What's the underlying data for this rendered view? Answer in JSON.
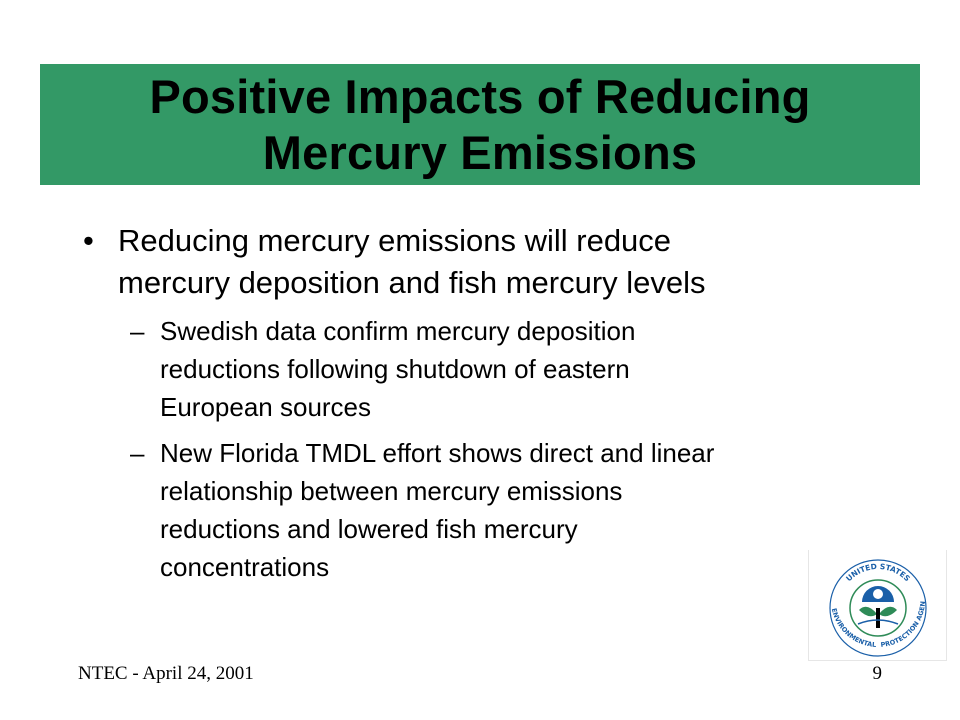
{
  "title": {
    "line1": "Positive Impacts of Reducing",
    "line2": "Mercury Emissions"
  },
  "bullet": {
    "marker": "•",
    "lines": [
      "Reducing mercury emissions will reduce",
      "mercury deposition and fish mercury levels"
    ]
  },
  "sub_bullets": [
    {
      "marker": "–",
      "lines": [
        "Swedish data confirm mercury deposition",
        "reductions following shutdown of eastern",
        "European sources"
      ]
    },
    {
      "marker": "–",
      "lines": [
        "New Florida TMDL effort shows direct and linear",
        "relationship between mercury emissions",
        "reductions and lowered fish mercury",
        "concentrations"
      ]
    }
  ],
  "footer": {
    "left": "NTEC - April 24, 2001",
    "page_number": "9"
  },
  "seal": {
    "icon": "epa-seal-icon",
    "text_top": "UNITED STATES",
    "text_left": "ENVIRONMENTAL",
    "text_bottom": "PROTECTION AGENCY"
  },
  "colors": {
    "title_bar": "#339966",
    "seal_green": "#2e8b57",
    "seal_blue": "#1a5fa8"
  }
}
